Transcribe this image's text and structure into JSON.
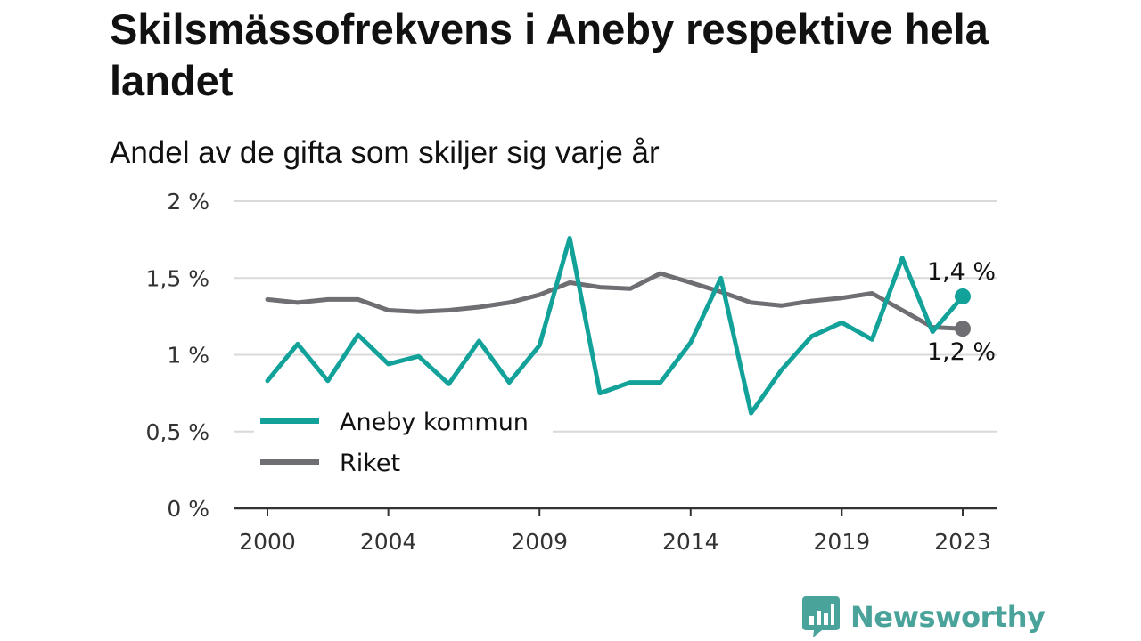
{
  "chart_data": {
    "type": "line",
    "title": "Skilsmässofrekvens i Aneby respektive hela landet",
    "subtitle": "Andel av de gifta som skiljer sig varje år",
    "xlabel": "",
    "ylabel": "",
    "ylim": [
      0,
      2
    ],
    "y_ticks": [
      0,
      0.5,
      1,
      1.5,
      2
    ],
    "y_tick_labels": [
      "0 %",
      "0,5 %",
      "1 %",
      "1,5 %",
      "2 %"
    ],
    "x_ticks": [
      2000,
      2004,
      2009,
      2014,
      2019,
      2023
    ],
    "x_tick_labels": [
      "2000",
      "2004",
      "2009",
      "2014",
      "2019",
      "2023"
    ],
    "x": [
      2000,
      2001,
      2002,
      2003,
      2004,
      2005,
      2006,
      2007,
      2008,
      2009,
      2010,
      2011,
      2012,
      2013,
      2014,
      2015,
      2016,
      2017,
      2018,
      2019,
      2020,
      2021,
      2022,
      2023
    ],
    "grid": true,
    "legend_position": "bottom-left",
    "series": [
      {
        "name": "Aneby kommun",
        "color": "#12a29a",
        "values": [
          0.83,
          1.07,
          0.83,
          1.13,
          0.94,
          0.99,
          0.81,
          1.09,
          0.82,
          1.06,
          1.76,
          0.75,
          0.82,
          0.82,
          1.08,
          1.5,
          0.62,
          0.9,
          1.12,
          1.21,
          1.1,
          1.63,
          1.15,
          1.38
        ],
        "end_label": "1,4 %"
      },
      {
        "name": "Riket",
        "color": "#6e6e73",
        "values": [
          1.36,
          1.34,
          1.36,
          1.36,
          1.29,
          1.28,
          1.29,
          1.31,
          1.34,
          1.39,
          1.47,
          1.44,
          1.43,
          1.53,
          1.47,
          1.41,
          1.34,
          1.32,
          1.35,
          1.37,
          1.4,
          1.29,
          1.18,
          1.17
        ],
        "end_label": "1,2 %"
      }
    ]
  },
  "brand": {
    "name": "Newsworthy",
    "color": "#4aa39a"
  }
}
